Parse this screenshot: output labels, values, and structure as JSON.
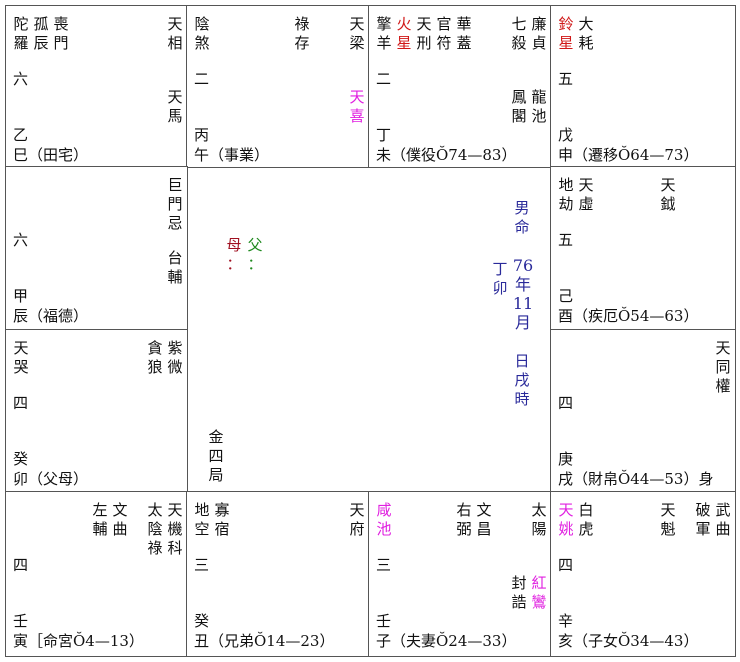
{
  "colors": {
    "default": "#111111",
    "red": "#d01818",
    "magenta": "#e020e0",
    "mother": "#a01020",
    "father": "#208a20",
    "info": "#2a2a9a"
  },
  "cells": {
    "si": {
      "left": [
        {
          "n": "陀羅"
        },
        {
          "n": "孤辰"
        },
        {
          "n": "喪門"
        }
      ],
      "mid": [],
      "right": [
        {
          "n": "天相"
        }
      ],
      "midright": [
        {
          "n": "天馬"
        }
      ],
      "num": "六",
      "stem": "乙",
      "branch": "巳（田宅）"
    },
    "wu": {
      "left": [
        {
          "n": "陰煞"
        }
      ],
      "mid": [
        {
          "n": "祿存"
        }
      ],
      "right": [
        {
          "n": "天梁"
        }
      ],
      "midright": [
        {
          "n": "天喜",
          "c": "magenta"
        }
      ],
      "num": "二",
      "stem": "丙",
      "branch": "午（事業）"
    },
    "wei": {
      "left": [
        {
          "n": "擎羊"
        },
        {
          "n": "火星",
          "c": "red"
        },
        {
          "n": "天刑"
        },
        {
          "n": "官符"
        },
        {
          "n": "華蓋"
        }
      ],
      "mid": [],
      "right": [
        {
          "n": "七殺"
        },
        {
          "n": "廉貞"
        }
      ],
      "midright": [
        {
          "n": "鳳閣"
        },
        {
          "n": "龍池"
        }
      ],
      "num": "二",
      "stem": "丁",
      "branch": "未（僕役Ŏ74—83）"
    },
    "shen": {
      "left": [
        {
          "n": "鈴星",
          "c": "red"
        },
        {
          "n": "大耗"
        }
      ],
      "mid": [],
      "right": [],
      "midright": [],
      "num": "五",
      "stem": "戊",
      "branch": "申（遷移Ŏ64—73）"
    },
    "chen": {
      "left": [],
      "mid": [],
      "right": [
        {
          "n": "巨門忌"
        }
      ],
      "midright": [
        {
          "n": "台輔"
        }
      ],
      "num": "六",
      "stem": "甲",
      "branch": "辰（福德）"
    },
    "you": {
      "left": [
        {
          "n": "地劫"
        },
        {
          "n": "天虛"
        }
      ],
      "mid": [
        {
          "n": "天鉞"
        }
      ],
      "right": [],
      "midright": [],
      "num": "五",
      "stem": "己",
      "branch": "酉（疾厄Ŏ54—63）"
    },
    "mao": {
      "left": [
        {
          "n": "天哭"
        }
      ],
      "mid": [],
      "right": [
        {
          "n": "貪狼"
        },
        {
          "n": "紫微"
        }
      ],
      "midright": [],
      "num": "四",
      "stem": "癸",
      "branch": "卯（父母）"
    },
    "xu": {
      "left": [],
      "mid": [],
      "right": [
        {
          "n": "天同權"
        }
      ],
      "midright": [],
      "num": "四",
      "stem": "庚",
      "branch": "戌（財帛Ŏ44—53）身"
    },
    "yin": {
      "left": [],
      "mid": [
        {
          "n": "左輔"
        },
        {
          "n": "文曲"
        }
      ],
      "right": [
        {
          "n": "太陰祿"
        },
        {
          "n": "天機科"
        }
      ],
      "midright": [],
      "num": "四",
      "stem": "壬",
      "branch": "寅［命宮Ŏ4—13）"
    },
    "chou": {
      "left": [
        {
          "n": "地空"
        },
        {
          "n": "寡宿"
        }
      ],
      "mid": [],
      "right": [
        {
          "n": "天府"
        }
      ],
      "midright": [],
      "num": "三",
      "stem": "癸",
      "branch": "丑（兄弟Ŏ14—23）"
    },
    "zi": {
      "left": [
        {
          "n": "咸池",
          "c": "magenta"
        }
      ],
      "mid": [
        {
          "n": "右弼"
        },
        {
          "n": "文昌"
        }
      ],
      "right": [
        {
          "n": "太陽"
        }
      ],
      "midright": [
        {
          "n": "封誥"
        },
        {
          "n": "紅鸞",
          "c": "magenta"
        }
      ],
      "num": "三",
      "stem": "壬",
      "branch": "子（夫妻Ŏ24—33）"
    },
    "hai": {
      "left": [
        {
          "n": "天姚",
          "c": "magenta"
        },
        {
          "n": "白虎"
        }
      ],
      "mid": [
        {
          "n": "天魁"
        }
      ],
      "right": [
        {
          "n": "破軍"
        },
        {
          "n": "武曲"
        }
      ],
      "midright": [],
      "num": "四",
      "stem": "辛",
      "branch": "亥（子女Ŏ34—43）"
    }
  },
  "center": {
    "mother": "母：",
    "father": "父：",
    "gender": "男命",
    "year_stem": "丁卯",
    "date": "76年11月",
    "hour": "日戌時",
    "bureau": "金四局"
  }
}
